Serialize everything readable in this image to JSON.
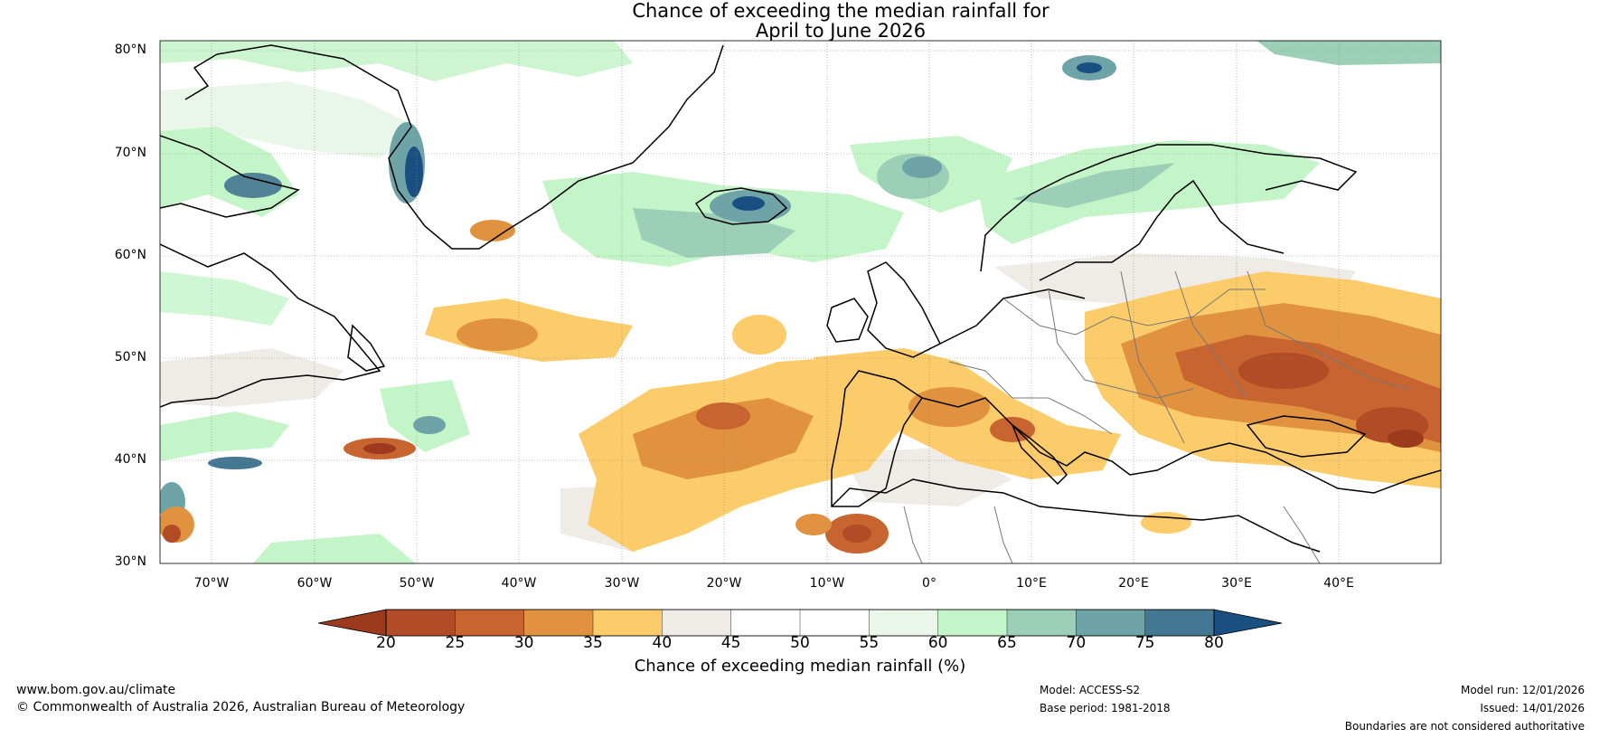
{
  "title": {
    "line1": "Chance of exceeding the median rainfall for",
    "line2": "April to June 2026"
  },
  "map": {
    "region": "North Atlantic and Europe",
    "lat_labels": [
      "80°N",
      "70°N",
      "60°N",
      "50°N",
      "40°N",
      "30°N"
    ],
    "lon_labels": [
      "70°W",
      "60°W",
      "50°W",
      "40°W",
      "30°W",
      "20°W",
      "10°W",
      "0°",
      "10°E",
      "20°E",
      "30°E",
      "40°E"
    ],
    "lat_range": [
      30,
      81
    ],
    "lon_range": [
      -75,
      50
    ],
    "features": [
      {
        "name": "Greenland",
        "chance": "mixed 40-75"
      },
      {
        "name": "Iceland",
        "chance": "60-75"
      },
      {
        "name": "Norway",
        "chance": "55-70"
      },
      {
        "name": "Iberia / Western Mediterranean",
        "chance": "30-40"
      },
      {
        "name": "Eastern Europe / Black Sea",
        "chance": "20-35"
      },
      {
        "name": "Central Atlantic",
        "chance": "30-40"
      }
    ]
  },
  "colorbar": {
    "label": "Chance of exceeding median rainfall (%)",
    "ticks": [
      "20",
      "25",
      "30",
      "35",
      "40",
      "45",
      "50",
      "55",
      "60",
      "65",
      "70",
      "75",
      "80"
    ],
    "colors": [
      "#9b3a1c",
      "#b24c26",
      "#c8642f",
      "#e0923f",
      "#fdcc6a",
      "#efebe7",
      "#ffffff",
      "#ffffff",
      "#e9f6e9",
      "#c4f5c8",
      "#9ccfb7",
      "#6ea3a8",
      "#447791",
      "#1a4f82"
    ]
  },
  "footer": {
    "website": "www.bom.gov.au/climate",
    "copyright": "© Commonwealth of Australia 2026, Australian Bureau of Meteorology",
    "model": "Model: ACCESS-S2",
    "base_period": "Base period: 1981-2018",
    "model_run": "Model run: 12/01/2026",
    "issued": "Issued: 14/01/2026",
    "disclaimer": "Boundaries are not considered authoritative"
  }
}
